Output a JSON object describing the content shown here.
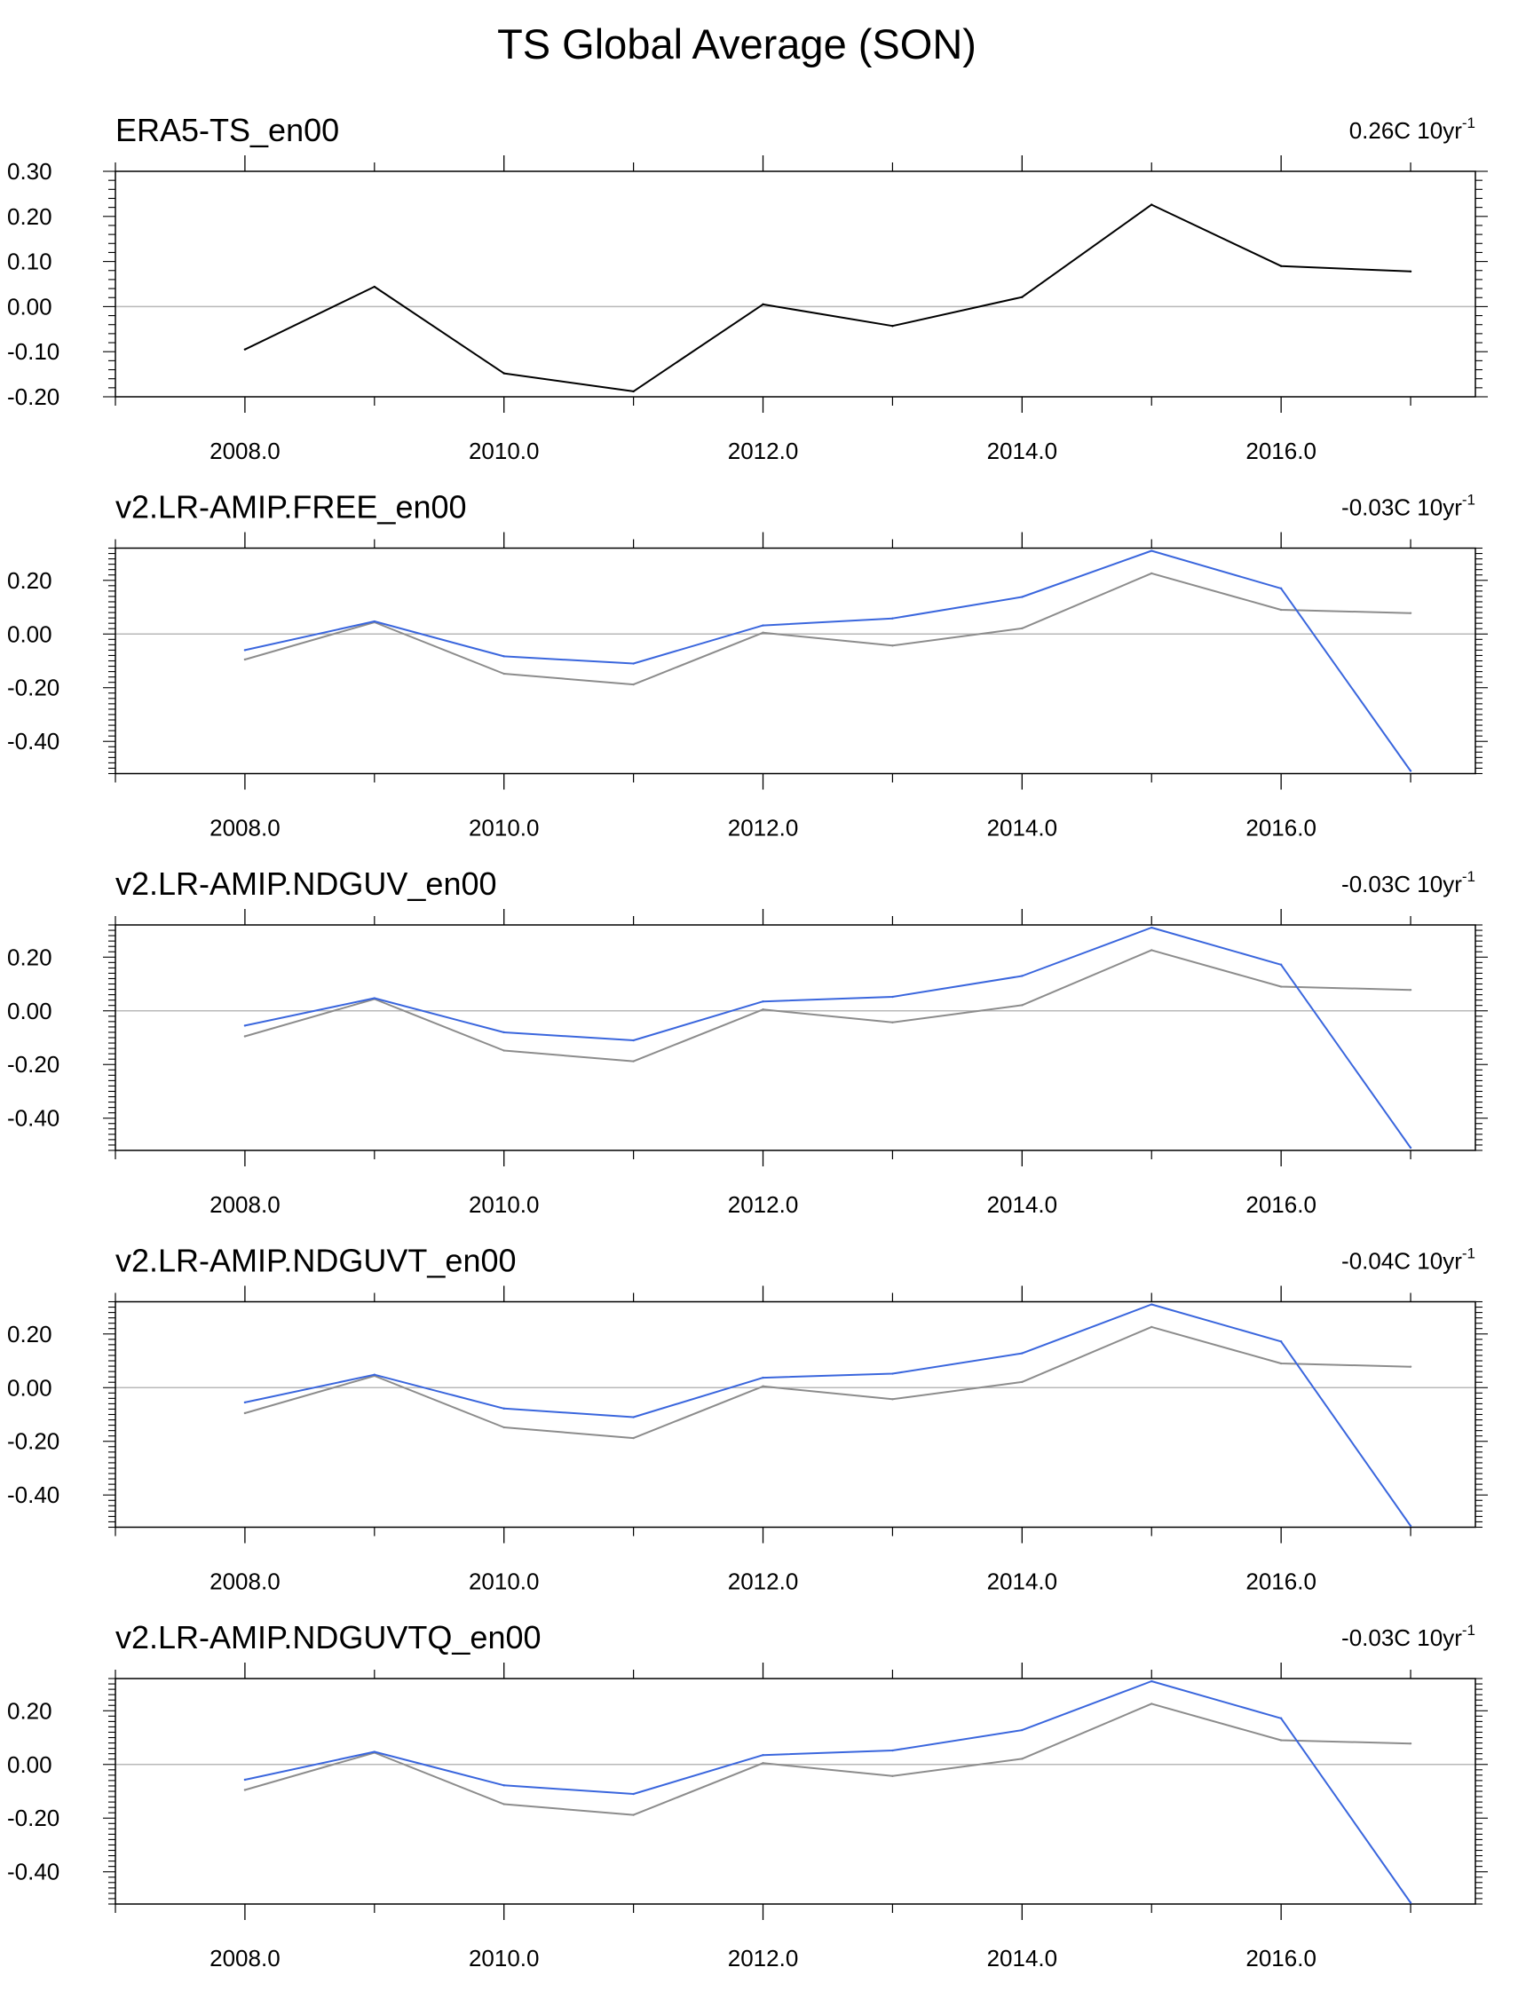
{
  "title": "TS Global Average (SON)",
  "colors": {
    "reference": "#000000",
    "reference_overlay": "#8c8c8c",
    "model": "#3a66dd",
    "zero_line": "#b8b8b8",
    "axis": "#000000"
  },
  "chart_data": [
    {
      "type": "line",
      "panel_title": "ERA5-TS_en00",
      "trend_label": {
        "value": "0.26C 10yr",
        "superscript": "-1"
      },
      "x": [
        2008,
        2009,
        2010,
        2011,
        2012,
        2013,
        2014,
        2015,
        2016,
        2017
      ],
      "xlim": [
        2007.0,
        2017.5
      ],
      "xticks": [
        2008,
        2010,
        2012,
        2014,
        2016
      ],
      "xtick_labels": [
        "2008.0",
        "2010.0",
        "2012.0",
        "2014.0",
        "2016.0"
      ],
      "ylim": [
        -0.2,
        0.3
      ],
      "yticks": [
        0.3,
        0.2,
        0.1,
        0.0,
        -0.1,
        -0.2
      ],
      "ytick_labels": [
        "0.30",
        "0.20",
        "0.10",
        "0.00",
        "-0.10",
        "-0.20"
      ],
      "series": [
        {
          "name": "ERA5-TS_en00",
          "role": "reference",
          "values": [
            -0.095,
            0.044,
            -0.148,
            -0.188,
            0.005,
            -0.043,
            0.021,
            0.226,
            0.09,
            0.078
          ]
        }
      ]
    },
    {
      "type": "line",
      "panel_title": "v2.LR-AMIP.FREE_en00",
      "trend_label": {
        "value": "-0.03C 10yr",
        "superscript": "-1"
      },
      "x": [
        2008,
        2009,
        2010,
        2011,
        2012,
        2013,
        2014,
        2015,
        2016,
        2017
      ],
      "xlim": [
        2007.0,
        2017.5
      ],
      "xticks": [
        2008,
        2010,
        2012,
        2014,
        2016
      ],
      "xtick_labels": [
        "2008.0",
        "2010.0",
        "2012.0",
        "2014.0",
        "2016.0"
      ],
      "ylim": [
        -0.52,
        0.32
      ],
      "yticks": [
        0.2,
        0.0,
        -0.2,
        -0.4
      ],
      "ytick_labels": [
        "0.20",
        "0.00",
        "-0.20",
        "-0.40"
      ],
      "series": [
        {
          "name": "ERA5-TS_en00",
          "role": "reference_overlay",
          "values": [
            -0.095,
            0.044,
            -0.148,
            -0.188,
            0.005,
            -0.043,
            0.021,
            0.226,
            0.09,
            0.078
          ]
        },
        {
          "name": "v2.LR-AMIP.FREE_en00",
          "role": "model",
          "values": [
            -0.06,
            0.047,
            -0.083,
            -0.11,
            0.032,
            0.058,
            0.138,
            0.31,
            0.17,
            -0.51
          ]
        }
      ]
    },
    {
      "type": "line",
      "panel_title": "v2.LR-AMIP.NDGUV_en00",
      "trend_label": {
        "value": "-0.03C 10yr",
        "superscript": "-1"
      },
      "x": [
        2008,
        2009,
        2010,
        2011,
        2012,
        2013,
        2014,
        2015,
        2016,
        2017
      ],
      "xlim": [
        2007.0,
        2017.5
      ],
      "xticks": [
        2008,
        2010,
        2012,
        2014,
        2016
      ],
      "xtick_labels": [
        "2008.0",
        "2010.0",
        "2012.0",
        "2014.0",
        "2016.0"
      ],
      "ylim": [
        -0.52,
        0.32
      ],
      "yticks": [
        0.2,
        0.0,
        -0.2,
        -0.4
      ],
      "ytick_labels": [
        "0.20",
        "0.00",
        "-0.20",
        "-0.40"
      ],
      "series": [
        {
          "name": "ERA5-TS_en00",
          "role": "reference_overlay",
          "values": [
            -0.095,
            0.044,
            -0.148,
            -0.188,
            0.005,
            -0.043,
            0.021,
            0.226,
            0.09,
            0.078
          ]
        },
        {
          "name": "v2.LR-AMIP.NDGUV_en00",
          "role": "model",
          "values": [
            -0.055,
            0.047,
            -0.08,
            -0.11,
            0.035,
            0.052,
            0.13,
            0.31,
            0.172,
            -0.51
          ]
        }
      ]
    },
    {
      "type": "line",
      "panel_title": "v2.LR-AMIP.NDGUVT_en00",
      "trend_label": {
        "value": "-0.04C 10yr",
        "superscript": "-1"
      },
      "x": [
        2008,
        2009,
        2010,
        2011,
        2012,
        2013,
        2014,
        2015,
        2016,
        2017
      ],
      "xlim": [
        2007.0,
        2017.5
      ],
      "xticks": [
        2008,
        2010,
        2012,
        2014,
        2016
      ],
      "xtick_labels": [
        "2008.0",
        "2010.0",
        "2012.0",
        "2014.0",
        "2016.0"
      ],
      "ylim": [
        -0.52,
        0.32
      ],
      "yticks": [
        0.2,
        0.0,
        -0.2,
        -0.4
      ],
      "ytick_labels": [
        "0.20",
        "0.00",
        "-0.20",
        "-0.40"
      ],
      "series": [
        {
          "name": "ERA5-TS_en00",
          "role": "reference_overlay",
          "values": [
            -0.095,
            0.044,
            -0.148,
            -0.188,
            0.005,
            -0.043,
            0.021,
            0.226,
            0.09,
            0.078
          ]
        },
        {
          "name": "v2.LR-AMIP.NDGUVT_en00",
          "role": "model",
          "values": [
            -0.055,
            0.048,
            -0.078,
            -0.11,
            0.037,
            0.052,
            0.128,
            0.31,
            0.172,
            -0.515
          ]
        }
      ]
    },
    {
      "type": "line",
      "panel_title": "v2.LR-AMIP.NDGUVTQ_en00",
      "trend_label": {
        "value": "-0.03C 10yr",
        "superscript": "-1"
      },
      "x": [
        2008,
        2009,
        2010,
        2011,
        2012,
        2013,
        2014,
        2015,
        2016,
        2017
      ],
      "xlim": [
        2007.0,
        2017.5
      ],
      "xticks": [
        2008,
        2010,
        2012,
        2014,
        2016
      ],
      "xtick_labels": [
        "2008.0",
        "2010.0",
        "2012.0",
        "2014.0",
        "2016.0"
      ],
      "ylim": [
        -0.52,
        0.32
      ],
      "yticks": [
        0.2,
        0.0,
        -0.2,
        -0.4
      ],
      "ytick_labels": [
        "0.20",
        "0.00",
        "-0.20",
        "-0.40"
      ],
      "series": [
        {
          "name": "ERA5-TS_en00",
          "role": "reference_overlay",
          "values": [
            -0.095,
            0.044,
            -0.148,
            -0.188,
            0.005,
            -0.043,
            0.021,
            0.226,
            0.09,
            0.078
          ]
        },
        {
          "name": "v2.LR-AMIP.NDGUVTQ_en00",
          "role": "model",
          "values": [
            -0.057,
            0.047,
            -0.078,
            -0.11,
            0.035,
            0.052,
            0.128,
            0.31,
            0.172,
            -0.515
          ]
        }
      ]
    }
  ]
}
